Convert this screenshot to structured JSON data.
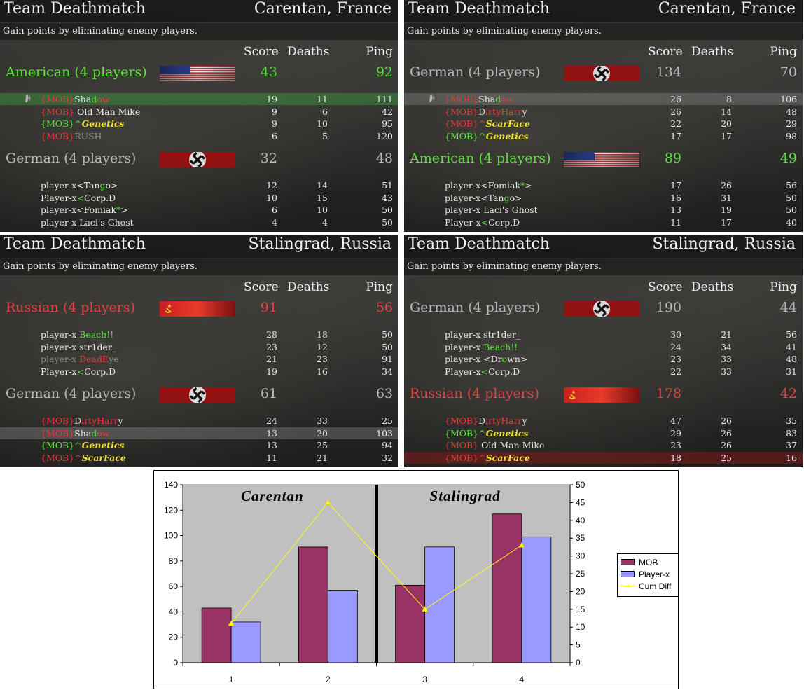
{
  "boards": [
    {
      "mode": "Team Deathmatch",
      "map": "Carentan, France",
      "subtitle": "Gain points by eliminating enemy players.",
      "headers": {
        "score": "Score",
        "deaths": "Deaths",
        "ping": "Ping"
      },
      "teams": [
        {
          "name": "American (4 players)",
          "flag": "usa",
          "color": "#5ee23e",
          "score": "43",
          "ping": "92",
          "players": [
            {
              "name": [
                {
                  "t": "{MOB}",
                  "c": "tr"
                },
                {
                  "t": "Sha",
                  "c": "tg"
                },
                {
                  "t": "d",
                  "c": "tgr"
                },
                {
                  "t": "ow",
                  "c": "tr"
                }
              ],
              "score": "19",
              "deaths": "11",
              "ping": "111",
              "highlight": "green",
              "you": true
            },
            {
              "name": [
                {
                  "t": "{MOB}",
                  "c": "tr"
                },
                {
                  "t": " Old Man Mike",
                  "c": "tg"
                }
              ],
              "score": "9",
              "deaths": "6",
              "ping": "42"
            },
            {
              "name": [
                {
                  "t": "{MOB}",
                  "c": "tgr"
                },
                {
                  "t": "^",
                  "c": "tgr"
                },
                {
                  "t": "Genetics",
                  "c": "ty"
                }
              ],
              "score": "9",
              "deaths": "10",
              "ping": "95"
            },
            {
              "name": [
                {
                  "t": "{MOB}",
                  "c": "tr"
                },
                {
                  "t": "RUSH",
                  "c": "tgy"
                }
              ],
              "score": "6",
              "deaths": "5",
              "ping": "120"
            }
          ]
        },
        {
          "name": "German (4 players)",
          "flag": "german",
          "color": "#b8b8b8",
          "score": "32",
          "ping": "48",
          "players": [
            {
              "name": [
                {
                  "t": "player-x<Tan",
                  "c": "tg"
                },
                {
                  "t": "g",
                  "c": "tgr"
                },
                {
                  "t": "o>",
                  "c": "tg"
                }
              ],
              "score": "12",
              "deaths": "14",
              "ping": "51"
            },
            {
              "name": [
                {
                  "t": "Player-x",
                  "c": "tg"
                },
                {
                  "t": "<",
                  "c": "tgr"
                },
                {
                  "t": "Corp.D",
                  "c": "tg"
                }
              ],
              "score": "10",
              "deaths": "15",
              "ping": "43"
            },
            {
              "name": [
                {
                  "t": "player-x<Fomiak",
                  "c": "tg"
                },
                {
                  "t": "*",
                  "c": "tgr"
                },
                {
                  "t": ">",
                  "c": "tg"
                }
              ],
              "score": "6",
              "deaths": "10",
              "ping": "50"
            },
            {
              "name": [
                {
                  "t": "player-x Laci's Ghost",
                  "c": "tg"
                }
              ],
              "score": "4",
              "deaths": "4",
              "ping": "50"
            }
          ]
        }
      ]
    },
    {
      "mode": "Team Deathmatch",
      "map": "Carentan, France",
      "subtitle": "Gain points by eliminating enemy players.",
      "headers": {
        "score": "Score",
        "deaths": "Deaths",
        "ping": "Ping"
      },
      "teams": [
        {
          "name": "German (4 players)",
          "flag": "german",
          "color": "#b8b8b8",
          "score": "134",
          "ping": "70",
          "players": [
            {
              "name": [
                {
                  "t": "{MOB}",
                  "c": "tr"
                },
                {
                  "t": "Sha",
                  "c": "tg"
                },
                {
                  "t": "d",
                  "c": "tgr"
                },
                {
                  "t": "ow",
                  "c": "tr"
                }
              ],
              "score": "26",
              "deaths": "8",
              "ping": "106",
              "highlight": "grey",
              "you": true
            },
            {
              "name": [
                {
                  "t": "{MOB}",
                  "c": "tr"
                },
                {
                  "t": "D",
                  "c": "tg"
                },
                {
                  "t": "irtyHarr",
                  "c": "tr"
                },
                {
                  "t": "y",
                  "c": "tg"
                }
              ],
              "score": "26",
              "deaths": "14",
              "ping": "48"
            },
            {
              "name": [
                {
                  "t": "{MOB}",
                  "c": "tr"
                },
                {
                  "t": "^",
                  "c": "tr"
                },
                {
                  "t": "ScarFace",
                  "c": "ty"
                }
              ],
              "score": "22",
              "deaths": "20",
              "ping": "29"
            },
            {
              "name": [
                {
                  "t": "{MOB}",
                  "c": "tgr"
                },
                {
                  "t": "^",
                  "c": "tgr"
                },
                {
                  "t": "Genetics",
                  "c": "ty"
                }
              ],
              "score": "17",
              "deaths": "17",
              "ping": "98"
            }
          ]
        },
        {
          "name": "American (4 players)",
          "flag": "usa",
          "color": "#5ee23e",
          "score": "89",
          "ping": "49",
          "players": [
            {
              "name": [
                {
                  "t": "player-x<Fomiak",
                  "c": "tg"
                },
                {
                  "t": "*",
                  "c": "tgr"
                },
                {
                  "t": ">",
                  "c": "tg"
                }
              ],
              "score": "17",
              "deaths": "26",
              "ping": "56"
            },
            {
              "name": [
                {
                  "t": "player-x<Tan",
                  "c": "tg"
                },
                {
                  "t": "g",
                  "c": "tgr"
                },
                {
                  "t": "o>",
                  "c": "tg"
                }
              ],
              "score": "16",
              "deaths": "31",
              "ping": "50"
            },
            {
              "name": [
                {
                  "t": "player-x Laci's Ghost",
                  "c": "tg"
                }
              ],
              "score": "13",
              "deaths": "19",
              "ping": "50"
            },
            {
              "name": [
                {
                  "t": "Player-x",
                  "c": "tg"
                },
                {
                  "t": "<",
                  "c": "tgr"
                },
                {
                  "t": "Corp.D",
                  "c": "tg"
                }
              ],
              "score": "11",
              "deaths": "17",
              "ping": "40"
            }
          ]
        }
      ]
    },
    {
      "mode": "Team Deathmatch",
      "map": "Stalingrad, Russia",
      "subtitle": "Gain points by eliminating enemy players.",
      "headers": {
        "score": "Score",
        "deaths": "Deaths",
        "ping": "Ping"
      },
      "teams": [
        {
          "name": "Russian (4 players)",
          "flag": "soviet",
          "color": "#e04545",
          "score": "91",
          "ping": "56",
          "players": [
            {
              "name": [
                {
                  "t": "player-x ",
                  "c": "tg"
                },
                {
                  "t": "Beach!!",
                  "c": "tgr"
                }
              ],
              "score": "28",
              "deaths": "18",
              "ping": "50"
            },
            {
              "name": [
                {
                  "t": "player-x str1der_",
                  "c": "tg"
                }
              ],
              "score": "23",
              "deaths": "12",
              "ping": "50"
            },
            {
              "name": [
                {
                  "t": "player-x ",
                  "c": "tgy"
                },
                {
                  "t": "DeadE",
                  "c": "tr"
                },
                {
                  "t": "ye",
                  "c": "tgy"
                }
              ],
              "score": "21",
              "deaths": "23",
              "ping": "91"
            },
            {
              "name": [
                {
                  "t": "Player-x",
                  "c": "tg"
                },
                {
                  "t": "<",
                  "c": "tgr"
                },
                {
                  "t": "Corp.D",
                  "c": "tg"
                }
              ],
              "score": "19",
              "deaths": "16",
              "ping": "34"
            }
          ]
        },
        {
          "name": "German (4 players)",
          "flag": "german",
          "color": "#b8b8b8",
          "score": "61",
          "ping": "63",
          "players": [
            {
              "name": [
                {
                  "t": "{MOB}",
                  "c": "tr"
                },
                {
                  "t": "D",
                  "c": "tg"
                },
                {
                  "t": "irtyHarr",
                  "c": "tr"
                },
                {
                  "t": "y",
                  "c": "tg"
                }
              ],
              "score": "24",
              "deaths": "33",
              "ping": "25"
            },
            {
              "name": [
                {
                  "t": "{MOB}",
                  "c": "tr"
                },
                {
                  "t": "Sha",
                  "c": "tg"
                },
                {
                  "t": "d",
                  "c": "tgr"
                },
                {
                  "t": "ow",
                  "c": "tr"
                }
              ],
              "score": "13",
              "deaths": "20",
              "ping": "103",
              "highlight": "grey"
            },
            {
              "name": [
                {
                  "t": "{MOB}",
                  "c": "tgr"
                },
                {
                  "t": "^",
                  "c": "tgr"
                },
                {
                  "t": "Genetics",
                  "c": "ty"
                }
              ],
              "score": "13",
              "deaths": "25",
              "ping": "94"
            },
            {
              "name": [
                {
                  "t": "{MOB}",
                  "c": "tr"
                },
                {
                  "t": "^",
                  "c": "tr"
                },
                {
                  "t": "ScarFace",
                  "c": "ty"
                }
              ],
              "score": "11",
              "deaths": "21",
              "ping": "32"
            }
          ]
        }
      ]
    },
    {
      "mode": "Team Deathmatch",
      "map": "Stalingrad, Russia",
      "subtitle": "Gain points by eliminating enemy players.",
      "headers": {
        "score": "Score",
        "deaths": "Deaths",
        "ping": "Ping"
      },
      "teams": [
        {
          "name": "German (4 players)",
          "flag": "german",
          "color": "#b8b8b8",
          "score": "190",
          "ping": "44",
          "players": [
            {
              "name": [
                {
                  "t": "player-x str1der_",
                  "c": "tg"
                }
              ],
              "score": "30",
              "deaths": "21",
              "ping": "56"
            },
            {
              "name": [
                {
                  "t": "player-x ",
                  "c": "tg"
                },
                {
                  "t": "Beach!!",
                  "c": "tgr"
                }
              ],
              "score": "24",
              "deaths": "34",
              "ping": "41"
            },
            {
              "name": [
                {
                  "t": "player-x <Dr",
                  "c": "tg"
                },
                {
                  "t": "o",
                  "c": "tgr"
                },
                {
                  "t": "wn>",
                  "c": "tg"
                }
              ],
              "score": "23",
              "deaths": "33",
              "ping": "48"
            },
            {
              "name": [
                {
                  "t": "Player-x",
                  "c": "tg"
                },
                {
                  "t": "<",
                  "c": "tgr"
                },
                {
                  "t": "Corp.D",
                  "c": "tg"
                }
              ],
              "score": "22",
              "deaths": "33",
              "ping": "31"
            }
          ]
        },
        {
          "name": "Russian (4 players)",
          "flag": "soviet",
          "color": "#e04545",
          "score": "178",
          "ping": "42",
          "players": [
            {
              "name": [
                {
                  "t": "{MOB}",
                  "c": "tr"
                },
                {
                  "t": "D",
                  "c": "tg"
                },
                {
                  "t": "irtyHarr",
                  "c": "tr"
                },
                {
                  "t": "y",
                  "c": "tg"
                }
              ],
              "score": "47",
              "deaths": "26",
              "ping": "35"
            },
            {
              "name": [
                {
                  "t": "{MOB}",
                  "c": "tgr"
                },
                {
                  "t": "^",
                  "c": "tgr"
                },
                {
                  "t": "Genetics",
                  "c": "ty"
                }
              ],
              "score": "29",
              "deaths": "26",
              "ping": "83"
            },
            {
              "name": [
                {
                  "t": "{MOB}",
                  "c": "tr"
                },
                {
                  "t": " Old Man Mike",
                  "c": "tg"
                }
              ],
              "score": "23",
              "deaths": "26",
              "ping": "37"
            },
            {
              "name": [
                {
                  "t": "{MOB}",
                  "c": "tr"
                },
                {
                  "t": "^",
                  "c": "tr"
                },
                {
                  "t": "ScarFace",
                  "c": "ty"
                }
              ],
              "score": "18",
              "deaths": "25",
              "ping": "16",
              "highlight": "red"
            }
          ]
        }
      ]
    }
  ],
  "chart_data": {
    "type": "bar",
    "categories": [
      "1",
      "2",
      "3",
      "4"
    ],
    "series": [
      {
        "name": "MOB",
        "values": [
          43,
          91,
          61,
          117
        ],
        "color": "#993366",
        "axis": "left"
      },
      {
        "name": "Player-x",
        "values": [
          32,
          57,
          91,
          99
        ],
        "color": "#9999ff",
        "axis": "left"
      },
      {
        "name": "Cum Diff",
        "type": "line",
        "values": [
          11,
          45,
          15,
          33
        ],
        "color": "#ffff00",
        "axis": "right"
      }
    ],
    "ylim": [
      0,
      140
    ],
    "yticks": [
      "0",
      "20",
      "40",
      "60",
      "80",
      "100",
      "120",
      "140"
    ],
    "y2lim": [
      0,
      50
    ],
    "y2ticks": [
      "0",
      "5",
      "10",
      "15",
      "20",
      "25",
      "30",
      "35",
      "40",
      "45",
      "50"
    ],
    "annotations": [
      "Carentan",
      "Stalingrad"
    ],
    "plot_background": "#c0c0c0",
    "legend_position": "right",
    "grid": false
  }
}
